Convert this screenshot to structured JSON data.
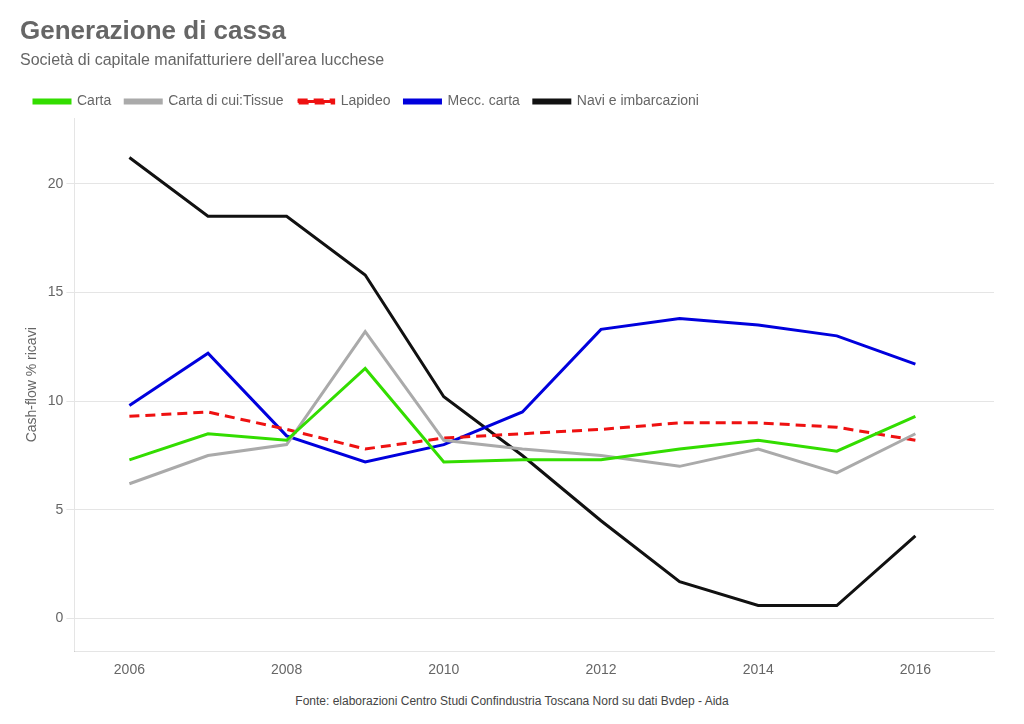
{
  "chart_data": {
    "type": "line",
    "title": "Generazione di cassa",
    "subtitle": "Società di capitale manifatturiere dell'area lucchese",
    "ylabel": "Cash-flow % ricavi",
    "footnote": "Fonte: elaborazioni Centro Studi Confindustria Toscana Nord su dati Bvdep - Aida",
    "x": [
      2006,
      2007,
      2008,
      2009,
      2010,
      2011,
      2012,
      2013,
      2014,
      2015,
      2016
    ],
    "series": [
      {
        "name": "Carta",
        "color": "#33dd00",
        "values": [
          7.3,
          8.5,
          8.2,
          11.5,
          7.2,
          7.3,
          7.3,
          7.8,
          8.2,
          7.7,
          9.3
        ]
      },
      {
        "name": "Carta di cui:Tissue",
        "color": "#aaaaaa",
        "values": [
          6.2,
          7.5,
          8.0,
          13.2,
          8.2,
          7.8,
          7.5,
          7.0,
          7.8,
          6.7,
          8.5
        ]
      },
      {
        "name": "Lapideo",
        "color": "#ee1111",
        "line_style": "dashed",
        "values": [
          9.3,
          9.5,
          8.7,
          7.8,
          8.3,
          8.5,
          8.7,
          9.0,
          9.0,
          8.8,
          8.2
        ]
      },
      {
        "name": "Mecc. carta",
        "color": "#0000dd",
        "values": [
          9.8,
          12.2,
          8.4,
          7.2,
          8.0,
          9.5,
          13.3,
          13.8,
          13.5,
          13.0,
          11.7
        ]
      },
      {
        "name": "Navi e imbarcazioni",
        "color": "#111111",
        "values": [
          21.2,
          18.5,
          18.5,
          15.8,
          10.2,
          7.5,
          4.5,
          1.7,
          0.6,
          0.6,
          3.8
        ]
      }
    ],
    "xlim": [
      2005.3,
      2017.0
    ],
    "xticks": [
      2006,
      2008,
      2010,
      2012,
      2014,
      2016
    ],
    "ylim": [
      -1.5,
      23
    ],
    "yticks": [
      0,
      5,
      10,
      15,
      20
    ],
    "grid": "y",
    "legend": "top"
  }
}
